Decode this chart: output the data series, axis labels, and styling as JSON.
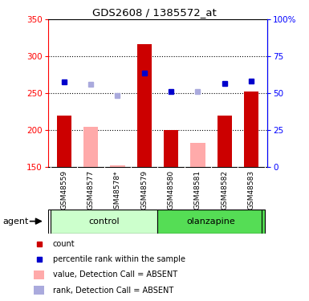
{
  "title": "GDS2608 / 1385572_at",
  "samples": [
    "GSM48559",
    "GSM48577",
    "GSM48578*",
    "GSM48579",
    "GSM48580",
    "GSM48581",
    "GSM48582",
    "GSM48583"
  ],
  "bar_values": [
    220,
    205,
    152,
    317,
    200,
    183,
    220,
    252
  ],
  "bar_absent": [
    false,
    true,
    true,
    false,
    false,
    true,
    false,
    false
  ],
  "rank_values": [
    265,
    262,
    247,
    277,
    252,
    252,
    263,
    267
  ],
  "rank_absent": [
    false,
    true,
    true,
    false,
    false,
    true,
    false,
    false
  ],
  "ylim_left": [
    150,
    350
  ],
  "ylim_right": [
    0,
    100
  ],
  "yticks_left": [
    150,
    200,
    250,
    300,
    350
  ],
  "yticks_right": [
    0,
    25,
    50,
    75,
    100
  ],
  "ytick_labels_right": [
    "0",
    "25",
    "50",
    "75",
    "100%"
  ],
  "groups": [
    {
      "label": "control",
      "indices": [
        0,
        1,
        2,
        3
      ],
      "color_light": "#ccffcc",
      "color_dark": "#66dd66"
    },
    {
      "label": "olanzapine",
      "indices": [
        4,
        5,
        6,
        7
      ],
      "color_light": "#66dd66",
      "color_dark": "#66dd66"
    }
  ],
  "bar_color_present": "#cc0000",
  "bar_color_absent": "#ffaaaa",
  "rank_color_present": "#0000cc",
  "rank_color_absent": "#aaaadd",
  "bar_width": 0.55,
  "label_area_color": "#cccccc",
  "agent_label": "agent",
  "grid_dotted_at": [
    200,
    250,
    300
  ],
  "legend_items": [
    {
      "color": "#cc0000",
      "type": "square",
      "label": "count"
    },
    {
      "color": "#0000cc",
      "type": "square",
      "label": "percentile rank within the sample"
    },
    {
      "color": "#ffaaaa",
      "type": "rect",
      "label": "value, Detection Call = ABSENT"
    },
    {
      "color": "#aaaadd",
      "type": "rect",
      "label": "rank, Detection Call = ABSENT"
    }
  ]
}
